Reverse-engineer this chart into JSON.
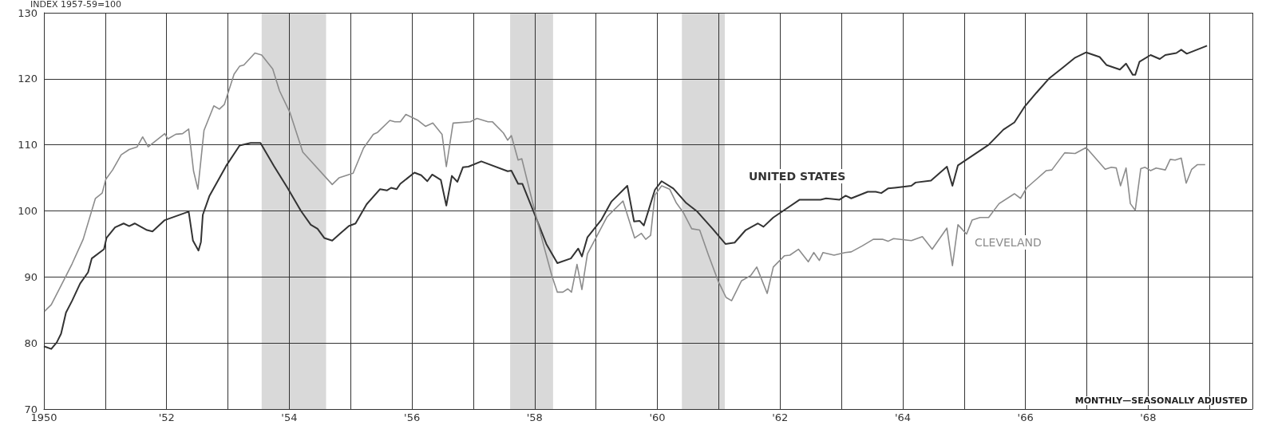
{
  "chart_data": {
    "type": "line",
    "ylabel": "INDEX 1957-59=100",
    "annotations": [
      "MONTHLY—SEASONALLY ADJUSTED"
    ],
    "series": [
      {
        "name": "UNITED STATES",
        "color": "#333333",
        "x": [
          1950.0,
          1950.12,
          1950.21,
          1950.28,
          1950.36,
          1950.46,
          1950.59,
          1950.72,
          1950.78,
          1950.98,
          1951.02,
          1951.16,
          1951.3,
          1951.39,
          1951.48,
          1951.68,
          1951.77,
          1951.97,
          1952.36,
          1952.43,
          1952.52,
          1952.56,
          1952.59,
          1952.7,
          1952.97,
          1953.19,
          1953.37,
          1953.53,
          1953.75,
          1953.97,
          1954.19,
          1954.35,
          1954.46,
          1954.57,
          1954.7,
          1954.82,
          1954.97,
          1955.08,
          1955.26,
          1955.48,
          1955.59,
          1955.66,
          1955.75,
          1955.81,
          1956.04,
          1956.15,
          1956.25,
          1956.33,
          1956.47,
          1956.56,
          1956.65,
          1956.74,
          1956.83,
          1956.92,
          1957.13,
          1957.56,
          1957.62,
          1957.73,
          1957.8,
          1957.99,
          1958.19,
          1958.37,
          1958.59,
          1958.71,
          1958.77,
          1958.86,
          1959.09,
          1959.25,
          1959.51,
          1959.62,
          1959.71,
          1959.78,
          1959.96,
          1960.07,
          1960.26,
          1960.47,
          1960.65,
          1960.9,
          1961.11,
          1961.26,
          1961.44,
          1961.64,
          1961.73,
          1961.89,
          1962.32,
          1962.66,
          1962.75,
          1962.97,
          1963.07,
          1963.16,
          1963.43,
          1963.56,
          1963.65,
          1963.76,
          1963.87,
          1964.14,
          1964.21,
          1964.46,
          1964.72,
          1964.81,
          1964.9,
          1965.4,
          1965.64,
          1965.82,
          1965.98,
          1966.18,
          1966.38,
          1966.61,
          1966.81,
          1966.99,
          1967.21,
          1967.32,
          1967.54,
          1967.64,
          1967.75,
          1967.79,
          1967.86,
          1968.04,
          1968.19,
          1968.28,
          1968.46,
          1968.54,
          1968.63,
          1968.96
        ],
        "values": [
          79.5,
          79.1,
          80.1,
          81.4,
          84.6,
          86.4,
          89.0,
          90.7,
          92.8,
          94.2,
          95.9,
          97.5,
          98.1,
          97.7,
          98.1,
          97.1,
          96.9,
          98.6,
          99.9,
          95.5,
          94.0,
          95.3,
          99.4,
          102.3,
          106.8,
          109.9,
          110.3,
          110.3,
          106.8,
          103.5,
          100.0,
          97.9,
          97.3,
          95.9,
          95.5,
          96.5,
          97.7,
          98.1,
          101.0,
          103.3,
          103.1,
          103.5,
          103.3,
          104.1,
          105.8,
          105.4,
          104.5,
          105.5,
          104.7,
          100.8,
          105.3,
          104.4,
          106.6,
          106.7,
          107.5,
          106.0,
          106.1,
          104.1,
          104.1,
          99.7,
          95.0,
          92.1,
          92.8,
          94.3,
          93.1,
          96.0,
          98.7,
          101.4,
          103.8,
          98.4,
          98.5,
          97.8,
          103.2,
          104.5,
          103.4,
          101.2,
          99.9,
          97.3,
          95.0,
          95.2,
          97.1,
          98.1,
          97.6,
          99.0,
          101.7,
          101.7,
          101.9,
          101.7,
          102.3,
          101.9,
          102.9,
          102.9,
          102.7,
          103.4,
          103.5,
          103.8,
          104.3,
          104.6,
          106.7,
          103.8,
          106.9,
          110.0,
          112.3,
          113.4,
          115.7,
          117.9,
          120.0,
          121.7,
          123.2,
          124.0,
          123.3,
          122.1,
          121.4,
          122.3,
          120.6,
          120.6,
          122.6,
          123.6,
          123.0,
          123.6,
          123.9,
          124.4,
          123.8,
          125.0
        ]
      },
      {
        "name": "CLEVELAND",
        "color": "#8c8c8c",
        "x": [
          1950.01,
          1950.12,
          1950.28,
          1950.46,
          1950.64,
          1950.84,
          1950.95,
          1951.01,
          1951.12,
          1951.26,
          1951.39,
          1951.52,
          1951.61,
          1951.7,
          1951.97,
          1952.02,
          1952.15,
          1952.26,
          1952.36,
          1952.44,
          1952.51,
          1952.61,
          1952.77,
          1952.86,
          1952.94,
          1953.1,
          1953.19,
          1953.26,
          1953.44,
          1953.55,
          1953.73,
          1953.84,
          1954.01,
          1954.22,
          1954.7,
          1954.81,
          1955.04,
          1955.21,
          1955.37,
          1955.44,
          1955.64,
          1955.72,
          1955.81,
          1955.9,
          1956.1,
          1956.22,
          1956.34,
          1956.49,
          1956.56,
          1956.67,
          1956.95,
          1957.06,
          1957.24,
          1957.31,
          1957.49,
          1957.56,
          1957.62,
          1957.73,
          1957.79,
          1957.99,
          1958.14,
          1958.28,
          1958.37,
          1958.46,
          1958.54,
          1958.6,
          1958.69,
          1958.77,
          1958.86,
          1959.18,
          1959.44,
          1959.63,
          1959.74,
          1959.81,
          1959.89,
          1959.96,
          1960.07,
          1960.2,
          1960.31,
          1960.42,
          1960.56,
          1960.69,
          1960.83,
          1960.99,
          1961.12,
          1961.21,
          1961.37,
          1961.52,
          1961.62,
          1961.79,
          1961.89,
          1962.07,
          1962.16,
          1962.3,
          1962.46,
          1962.55,
          1962.64,
          1962.7,
          1962.88,
          1963.06,
          1963.16,
          1963.34,
          1963.52,
          1963.67,
          1963.76,
          1963.85,
          1964.14,
          1964.32,
          1964.48,
          1964.72,
          1964.81,
          1964.9,
          1965.04,
          1965.13,
          1965.26,
          1965.4,
          1965.57,
          1965.82,
          1965.92,
          1966.02,
          1966.18,
          1966.34,
          1966.43,
          1966.64,
          1966.81,
          1966.99,
          1967.3,
          1967.4,
          1967.48,
          1967.55,
          1967.64,
          1967.71,
          1967.79,
          1967.88,
          1967.95,
          1968.04,
          1968.13,
          1968.28,
          1968.36,
          1968.44,
          1968.54,
          1968.62,
          1968.71,
          1968.8,
          1968.93
        ],
        "values": [
          84.8,
          85.8,
          88.7,
          92.0,
          95.7,
          101.9,
          102.7,
          104.8,
          106.2,
          108.5,
          109.3,
          109.7,
          111.2,
          109.7,
          111.7,
          110.9,
          111.6,
          111.7,
          112.4,
          106.0,
          103.3,
          112.2,
          115.9,
          115.4,
          116.1,
          120.7,
          121.9,
          122.1,
          123.9,
          123.6,
          121.5,
          118.2,
          114.9,
          108.9,
          104.0,
          105.0,
          105.7,
          109.5,
          111.6,
          111.9,
          113.7,
          113.5,
          113.5,
          114.6,
          113.7,
          112.8,
          113.3,
          111.6,
          106.7,
          113.3,
          113.5,
          114.0,
          113.5,
          113.5,
          111.8,
          110.7,
          111.4,
          107.7,
          107.9,
          100.4,
          95.0,
          90.2,
          87.7,
          87.7,
          88.2,
          87.7,
          91.9,
          88.1,
          93.5,
          99.1,
          101.5,
          95.9,
          96.6,
          95.7,
          96.3,
          102.4,
          103.8,
          103.3,
          101.2,
          99.8,
          97.3,
          97.1,
          93.4,
          89.4,
          86.9,
          86.4,
          89.4,
          90.2,
          91.5,
          87.5,
          91.5,
          93.2,
          93.3,
          94.2,
          92.3,
          93.7,
          92.5,
          93.7,
          93.3,
          93.7,
          93.8,
          94.7,
          95.7,
          95.7,
          95.4,
          95.8,
          95.5,
          96.1,
          94.2,
          97.4,
          91.7,
          97.9,
          96.5,
          98.6,
          99.0,
          99.0,
          101.1,
          102.6,
          101.9,
          103.5,
          104.8,
          106.1,
          106.2,
          108.8,
          108.7,
          109.6,
          106.3,
          106.6,
          106.5,
          103.8,
          106.5,
          101.1,
          100.1,
          106.4,
          106.6,
          106.1,
          106.5,
          106.2,
          107.8,
          107.7,
          108.0,
          104.2,
          106.3,
          107.0,
          107.0
        ]
      }
    ],
    "bands": [
      {
        "axis": "x",
        "from": 1953.55,
        "to": 1954.6,
        "color": "#d9d9d9"
      },
      {
        "axis": "x",
        "from": 1957.6,
        "to": 1958.3,
        "color": "#d9d9d9"
      },
      {
        "axis": "x",
        "from": 1960.4,
        "to": 1961.1,
        "color": "#d9d9d9"
      }
    ],
    "xlim": [
      1950,
      1969.7
    ],
    "xticks": [
      {
        "value": 1951,
        "label": null
      },
      {
        "value": 1953,
        "label": null
      },
      {
        "value": 1955,
        "label": null
      },
      {
        "value": 1957,
        "label": null
      },
      {
        "value": 1959,
        "label": null
      },
      {
        "value": 1961,
        "label": null
      },
      {
        "value": 1963,
        "label": null
      },
      {
        "value": 1965,
        "label": null
      },
      {
        "value": 1967,
        "label": null
      },
      {
        "value": 1969,
        "label": null
      },
      {
        "value": 1950,
        "label": "1950"
      },
      {
        "value": 1952,
        "label": "'52"
      },
      {
        "value": 1954,
        "label": "'54"
      },
      {
        "value": 1956,
        "label": "'56"
      },
      {
        "value": 1958,
        "label": "'58"
      },
      {
        "value": 1960,
        "label": "'60"
      },
      {
        "value": 1962,
        "label": "'62"
      },
      {
        "value": 1964,
        "label": "'64"
      },
      {
        "value": 1966,
        "label": "'66"
      },
      {
        "value": 1968,
        "label": "'68"
      }
    ],
    "ylim": [
      70,
      130
    ],
    "yticks": [
      70,
      80,
      90,
      100,
      110,
      120,
      130
    ],
    "grid": true,
    "legend": false,
    "marker": "none",
    "line_style": "solid"
  }
}
